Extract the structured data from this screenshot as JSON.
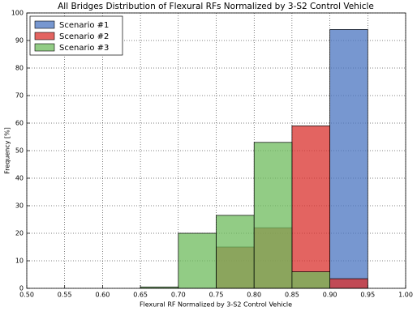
{
  "chart_data": {
    "type": "histogram",
    "title": "All Bridges Distribution of Flexural RFs Normalized by 3-S2 Control Vehicle",
    "x_label": "Flexural RF Normalized by 3-S2 Control Vehicle",
    "y_label": "Frequency [%]",
    "bins": [
      0.5,
      0.55,
      0.6,
      0.65,
      0.7,
      0.75,
      0.8,
      0.85,
      0.9,
      0.95,
      1.0
    ],
    "series": [
      {
        "name": "Scenario #1",
        "color": "#4a74c0",
        "values": [
          0,
          0,
          0,
          0,
          0,
          0,
          0,
          0,
          94,
          0
        ]
      },
      {
        "name": "Scenario #2",
        "color": "#d9302c",
        "values": [
          0,
          0,
          0,
          0,
          0,
          15,
          22,
          59,
          3.5,
          0
        ]
      },
      {
        "name": "Scenario #3",
        "color": "#6dbb5c",
        "values": [
          0,
          0,
          0,
          0.5,
          20,
          26.5,
          53,
          6,
          0,
          0
        ]
      }
    ],
    "opacity": 0.75,
    "xlim": [
      0.5,
      1.0
    ],
    "xticks": [
      {
        "value": 0.5,
        "label": "0.50"
      },
      {
        "value": 0.55,
        "label": "0.55"
      },
      {
        "value": 0.6,
        "label": "0.60"
      },
      {
        "value": 0.65,
        "label": "0.65"
      },
      {
        "value": 0.7,
        "label": "0.70"
      },
      {
        "value": 0.75,
        "label": "0.75"
      },
      {
        "value": 0.8,
        "label": "0.80"
      },
      {
        "value": 0.85,
        "label": "0.85"
      },
      {
        "value": 0.9,
        "label": "0.90"
      },
      {
        "value": 0.95,
        "label": "0.95"
      },
      {
        "value": 1.0,
        "label": "1.00"
      }
    ],
    "ylim": [
      0,
      100
    ],
    "yticks": [
      0,
      10,
      20,
      30,
      40,
      50,
      60,
      70,
      80,
      90,
      100
    ],
    "grid": true,
    "legend": "upper-left"
  }
}
